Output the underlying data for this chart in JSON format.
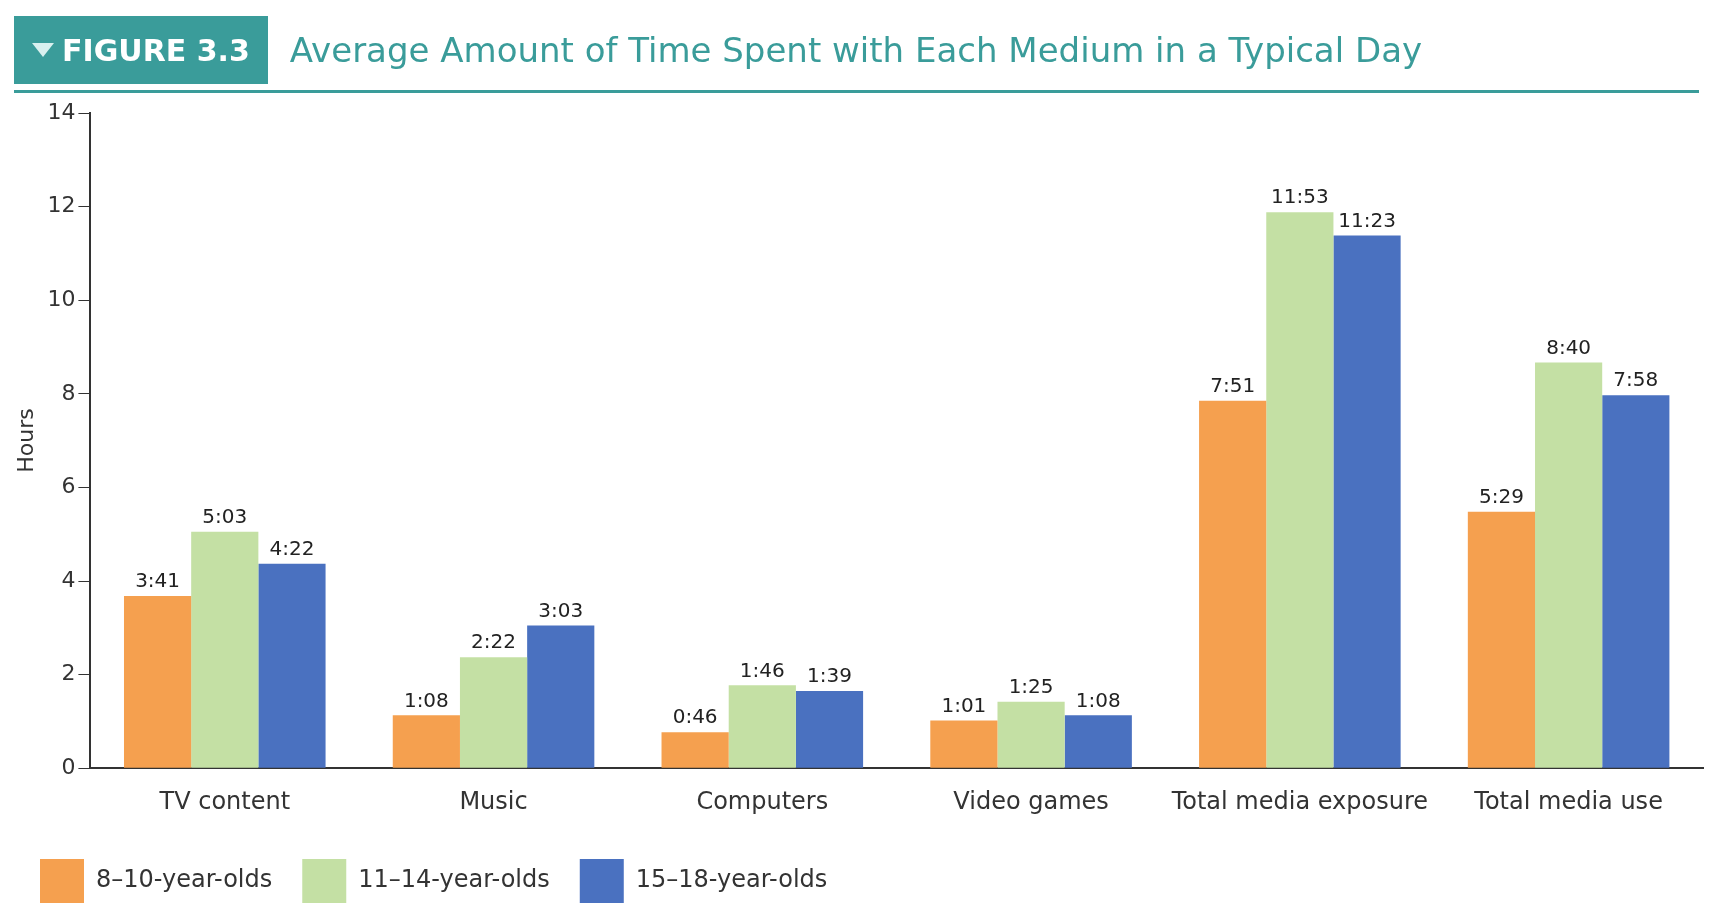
{
  "chart_data": {
    "type": "bar",
    "title": "Average Amount of Time Spent with Each Medium in a Typical Day",
    "annotations": [
      "FIGURE 3.3"
    ],
    "ylabel": "Hours",
    "categories": [
      "TV content",
      "Music",
      "Computers",
      "Video games",
      "Total media exposure",
      "Total media use"
    ],
    "series": [
      {
        "name": "8–10-year-olds",
        "color": "#f5a04f",
        "values": [
          3.68,
          1.13,
          0.77,
          1.02,
          7.85,
          5.48
        ],
        "value_labels": [
          "3:41",
          "1:08",
          "0:46",
          "1:01",
          "7:51",
          "5:29"
        ]
      },
      {
        "name": "11–14-year-olds",
        "color": "#c4e0a4",
        "values": [
          5.05,
          2.37,
          1.77,
          1.42,
          11.88,
          8.67
        ],
        "value_labels": [
          "5:03",
          "2:22",
          "1:46",
          "1:25",
          "11:53",
          "8:40"
        ]
      },
      {
        "name": "15–18-year-olds",
        "color": "#4a71c0",
        "values": [
          4.37,
          3.05,
          1.65,
          1.13,
          11.38,
          7.97
        ],
        "value_labels": [
          "4:22",
          "3:03",
          "1:39",
          "1:08",
          "11:23",
          "7:58"
        ]
      }
    ],
    "ylim": [
      0,
      14
    ],
    "yticks": [
      0,
      2,
      4,
      6,
      8,
      10,
      12,
      14
    ],
    "grid": false,
    "legend": "bottom left"
  }
}
